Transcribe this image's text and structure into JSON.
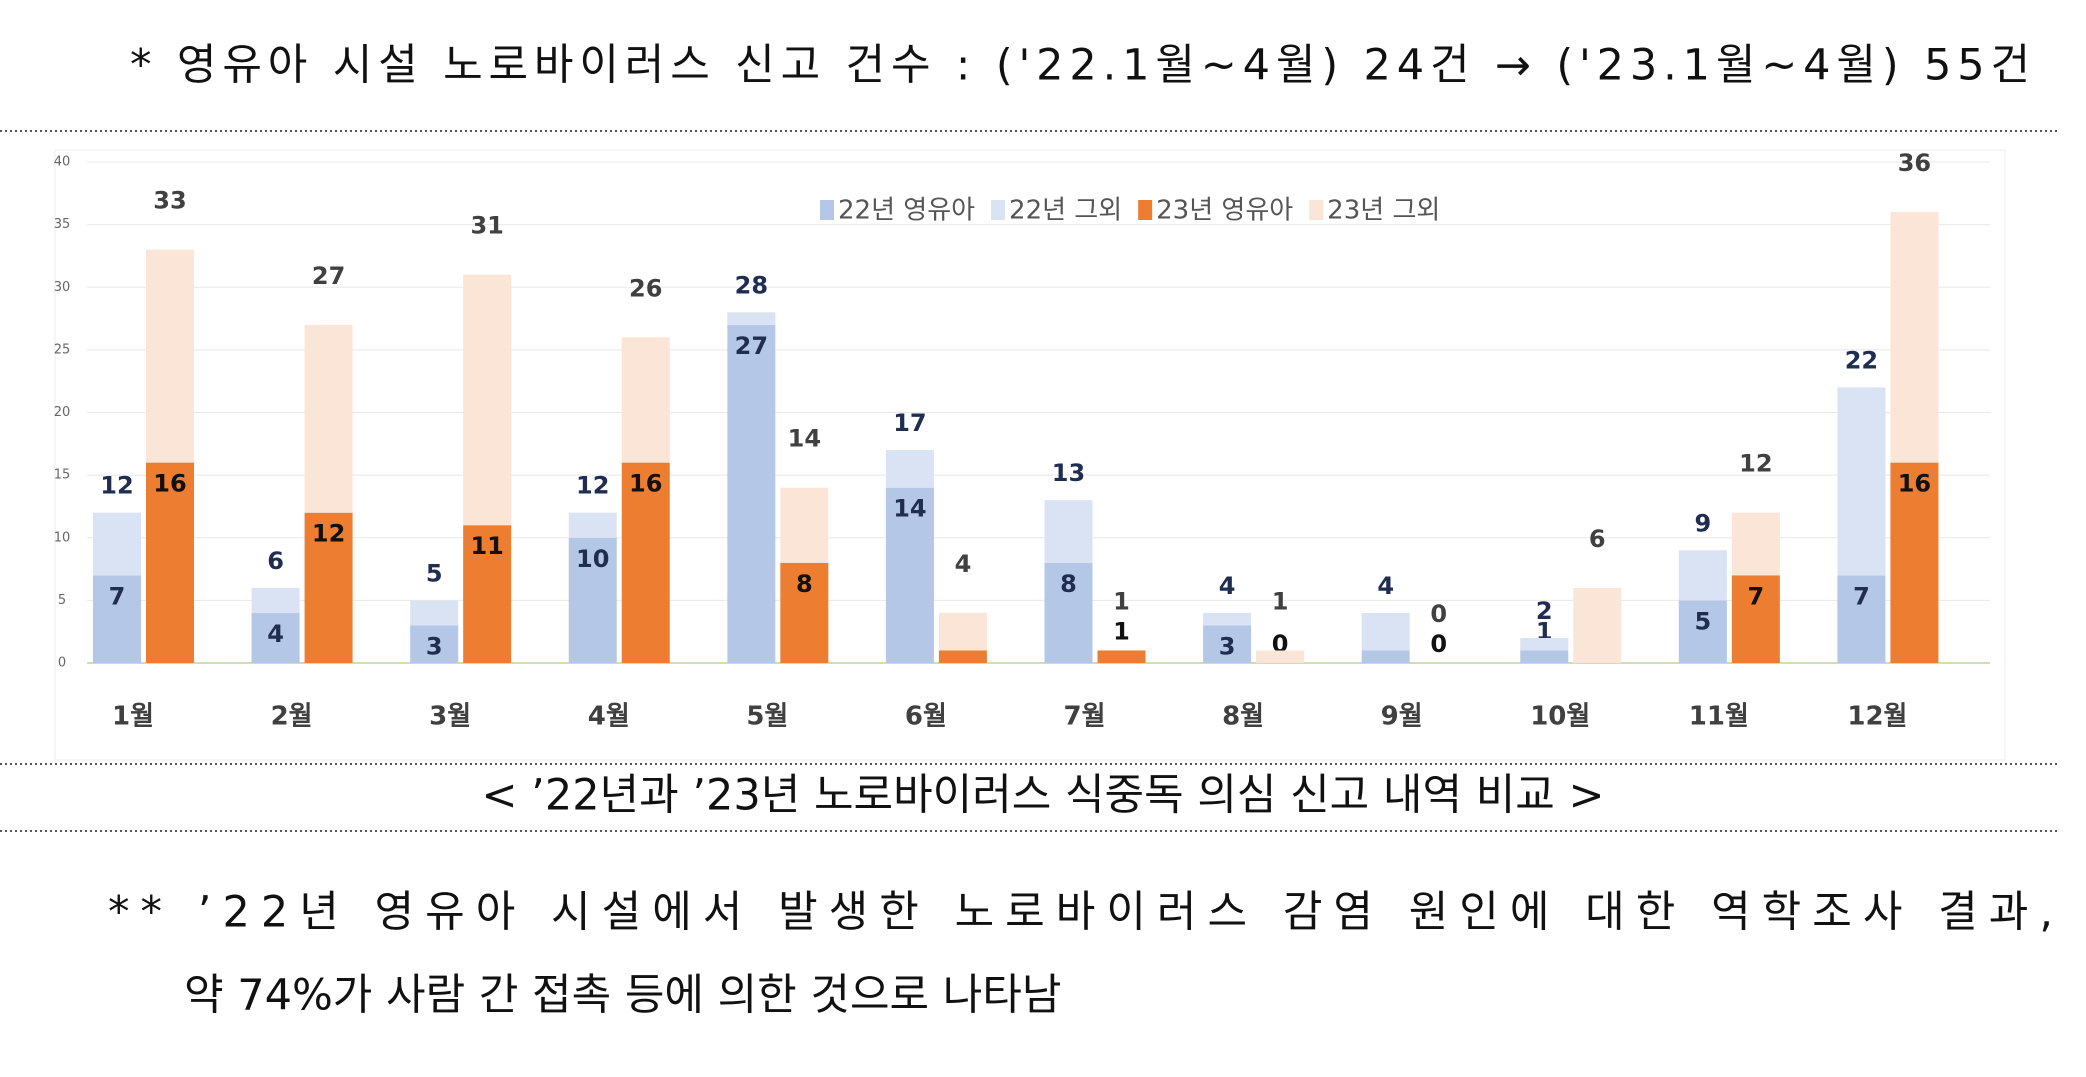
{
  "header": "* 영유아 시설 노로바이러스 신고 건수 : ('22.1월~4월) 24건 → ('23.1월~4월) 55건",
  "chart_data": {
    "type": "stacked_bar_pair",
    "categories": [
      "1월",
      "2월",
      "3월",
      "4월",
      "5월",
      "6월",
      "7월",
      "8월",
      "9월",
      "10월",
      "11월",
      "12월"
    ],
    "series": [
      {
        "name": "22년 영유아",
        "color": "#b4c7e7",
        "stack": 0,
        "values": [
          7,
          4,
          3,
          10,
          27,
          14,
          8,
          3,
          1,
          1,
          5,
          7
        ]
      },
      {
        "name": "22년 그외",
        "color": "#dae3f3",
        "stack": 0,
        "values": [
          5,
          2,
          2,
          2,
          1,
          3,
          5,
          1,
          3,
          1,
          4,
          15
        ]
      },
      {
        "name": "23년 영유아",
        "color": "#ed7d31",
        "stack": 1,
        "values": [
          16,
          12,
          11,
          16,
          8,
          1,
          1,
          0,
          0,
          0,
          7,
          16
        ]
      },
      {
        "name": "23년 그외",
        "color": "#fbe5d6",
        "stack": 1,
        "values": [
          17,
          15,
          20,
          10,
          6,
          3,
          0,
          1,
          0,
          6,
          5,
          20
        ]
      }
    ],
    "stack_totals": [
      [
        12,
        6,
        5,
        12,
        28,
        17,
        13,
        4,
        4,
        2,
        9,
        22
      ],
      [
        33,
        27,
        31,
        26,
        14,
        4,
        1,
        1,
        0,
        6,
        12,
        36
      ]
    ],
    "ylim": [
      0,
      40
    ],
    "yticks": [
      0,
      5,
      10,
      15,
      20,
      25,
      30,
      35,
      40
    ],
    "grid": true
  },
  "caption": "< ’22년과 ’23년 노로바이러스 식중독 의심 신고 내역 비교 >",
  "note": [
    "** ’22년 영유아 시설에서 발생한 노로바이러스 감염 원인에 대한 역학조사 결과,",
    "약 74%가 사람 간 접촉 등에 의한 것으로 나타남"
  ]
}
